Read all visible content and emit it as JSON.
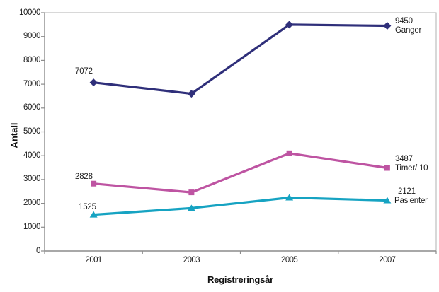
{
  "chart_data": {
    "type": "line",
    "title": "",
    "xlabel": "Registreringsår",
    "ylabel": "Antall",
    "categories": [
      "2001",
      "2003",
      "2005",
      "2007"
    ],
    "x_axis_title": "Registreringsår",
    "y_axis_title": "Antall",
    "ylim": [
      0,
      10000
    ],
    "y_tick_step": 1000,
    "y_ticks": [
      0,
      1000,
      2000,
      3000,
      4000,
      5000,
      6000,
      7000,
      8000,
      9000,
      10000
    ],
    "grid": false,
    "legend_position": "none",
    "plot_border_color": "#b0b0b0",
    "axis_color": "#8c8c8c",
    "series": [
      {
        "name": "Ganger",
        "color": "#2f2f7a",
        "marker": "diamond",
        "values": [
          7072,
          6600,
          9500,
          9450
        ],
        "label_first": "7072",
        "label_last_value": "9450",
        "label_last_name": "Ganger"
      },
      {
        "name": "Timer/ 10",
        "color": "#be54a2",
        "marker": "square",
        "values": [
          2828,
          2460,
          4100,
          3487
        ],
        "label_first": "2828",
        "label_last_value": "3487",
        "label_last_name": "Timer/ 10"
      },
      {
        "name": "Pasienter",
        "color": "#16a3c2",
        "marker": "triangle",
        "values": [
          1525,
          1800,
          2240,
          2121
        ],
        "label_first": "1525",
        "label_last_value": "2121",
        "label_last_name": "Pasienter"
      }
    ]
  }
}
